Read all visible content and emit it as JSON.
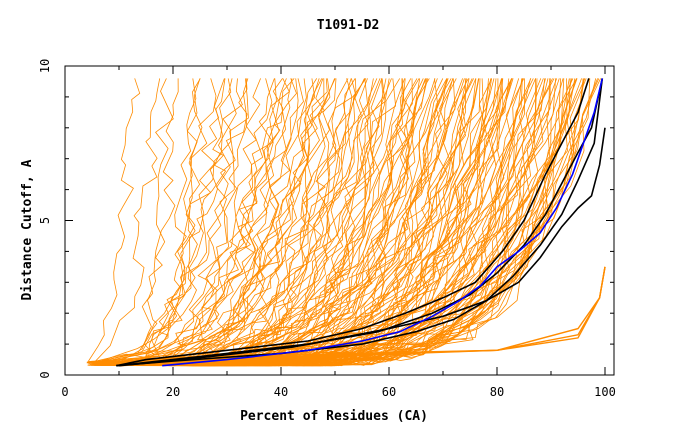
{
  "chart_data": {
    "type": "line",
    "title": "T1091-D2",
    "xlabel": "Percent of Residues (CA)",
    "ylabel": "Distance Cutoff, A",
    "xlim": [
      0,
      100
    ],
    "ylim": [
      0,
      10
    ],
    "x_ticks": [
      "0",
      "20",
      "40",
      "60",
      "80",
      "100"
    ],
    "y_ticks": [
      "0",
      "5",
      "10"
    ],
    "grid": false,
    "colors": {
      "background": "#ffffff",
      "axis": "#000000",
      "bulk": "#ff8c00",
      "highlight_black": "#000000",
      "highlight_blue": "#0000ff"
    },
    "series": [
      {
        "color": "#000000",
        "x": [
          9.5,
          15,
          30,
          45,
          55,
          63,
          70,
          76,
          81,
          85,
          89,
          92,
          95,
          97
        ],
        "y": [
          0.3,
          0.5,
          0.8,
          1.1,
          1.5,
          2,
          2.5,
          3,
          4,
          5,
          6.5,
          7.5,
          8.5,
          9.6
        ]
      },
      {
        "color": "#000000",
        "x": [
          9.5,
          20,
          40,
          55,
          65,
          72,
          78,
          83,
          88,
          92,
          95,
          98,
          99.5
        ],
        "y": [
          0.3,
          0.45,
          0.7,
          1.0,
          1.4,
          1.8,
          2.4,
          3.2,
          4.2,
          5.2,
          6.3,
          7.5,
          9.6
        ]
      },
      {
        "color": "#000000",
        "x": [
          10,
          22,
          42,
          58,
          68,
          75,
          80,
          85,
          89,
          92,
          95,
          97.5,
          99.5
        ],
        "y": [
          0.3,
          0.5,
          0.9,
          1.4,
          2.0,
          2.6,
          3.3,
          4.2,
          5.2,
          6.2,
          7.2,
          8.0,
          9.6
        ]
      },
      {
        "color": "#000000",
        "x": [
          9.5,
          25,
          45,
          60,
          70,
          78,
          84,
          88,
          92,
          95,
          97.5,
          99,
          100
        ],
        "y": [
          0.3,
          0.6,
          1.0,
          1.5,
          1.9,
          2.4,
          3.0,
          3.8,
          4.8,
          5.4,
          5.8,
          6.8,
          8.0
        ]
      },
      {
        "color": "#0000ff",
        "x": [
          18,
          30,
          45,
          55,
          62,
          68,
          73,
          77,
          80,
          84,
          88,
          91,
          94,
          96,
          98,
          99.5
        ],
        "y": [
          0.3,
          0.5,
          0.8,
          1.1,
          1.4,
          1.9,
          2.4,
          2.9,
          3.5,
          4.0,
          4.6,
          5.4,
          6.5,
          7.5,
          8.5,
          9.6
        ]
      }
    ]
  }
}
